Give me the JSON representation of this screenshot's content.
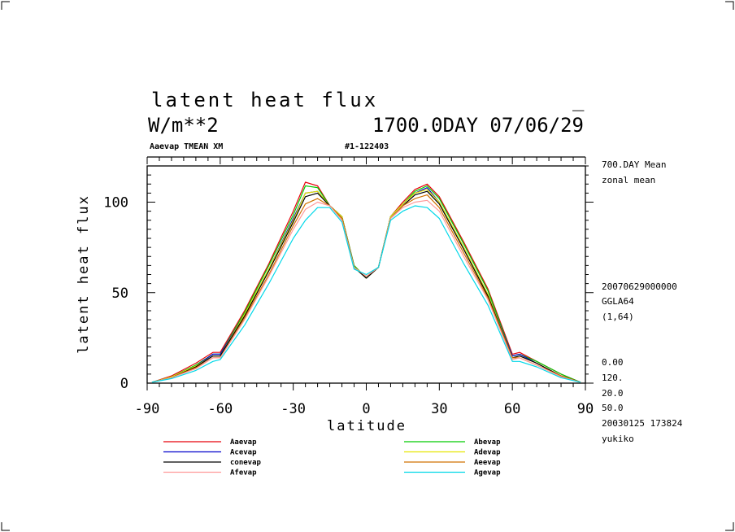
{
  "header": {
    "title": "latent heat flux",
    "title_mark": "_",
    "units": "W/m**2",
    "time_info": "1700.0DAY 07/06/29",
    "subtitle_left": "Aaevap TMEAN XM",
    "subtitle_center": "#1-122403"
  },
  "side_info": {
    "mean_label": "700.DAY Mean",
    "zonal_label": "zonal mean",
    "date_code": "20070629000000",
    "grid": "GGLA64",
    "index": "(1,64)",
    "v1": "0.00",
    "v2": "120.",
    "v3": "20.0",
    "v4": "50.0",
    "timestamp": "20030125 173824",
    "user": "yukiko"
  },
  "chart_data": {
    "type": "line",
    "xlabel": "latitude",
    "ylabel": "latent heat flux",
    "xlim": [
      -90,
      90
    ],
    "ylim": [
      0,
      120
    ],
    "x_ticks": [
      "-90",
      "-60",
      "-30",
      "0",
      "30",
      "60",
      "90"
    ],
    "y_ticks": [
      "0",
      "50",
      "100"
    ],
    "x": [
      -88,
      -80,
      -70,
      -63,
      -60,
      -50,
      -40,
      -30,
      -25,
      -20,
      -15,
      -10,
      -5,
      0,
      5,
      10,
      15,
      20,
      25,
      30,
      40,
      50,
      60,
      63,
      70,
      80,
      88
    ],
    "series": [
      {
        "name": "Aaevap",
        "color": "#e8000b",
        "values": [
          0.5,
          4,
          11,
          17,
          17,
          40,
          66,
          95,
          111,
          109,
          98,
          92,
          65,
          58,
          64,
          92,
          100,
          107,
          110,
          103,
          78,
          52,
          16,
          17,
          12,
          5,
          0.5
        ]
      },
      {
        "name": "Abevap",
        "color": "#00cc00",
        "values": [
          0.5,
          3.5,
          10,
          16,
          16,
          39,
          65,
          93,
          109,
          108,
          98,
          92,
          65,
          58,
          64,
          92,
          99,
          106,
          109,
          102,
          77,
          51,
          15,
          16,
          12,
          5,
          0.5
        ]
      },
      {
        "name": "Acevap",
        "color": "#0000cc",
        "values": [
          0.5,
          3.5,
          9.5,
          16,
          16,
          38,
          63,
          91,
          105,
          106,
          98,
          92,
          64,
          58,
          64,
          92,
          99,
          105,
          108,
          100,
          75,
          49,
          15,
          16,
          11,
          4,
          0.5
        ]
      },
      {
        "name": "Adevap",
        "color": "#e6e600",
        "values": [
          0.5,
          3.5,
          9.5,
          15,
          15,
          38,
          63,
          90,
          105,
          106,
          98,
          92,
          64,
          58,
          64,
          92,
          99,
          105,
          107,
          100,
          75,
          49,
          14,
          15,
          11,
          4,
          0.5
        ]
      },
      {
        "name": "conevap",
        "color": "#000000",
        "values": [
          0.5,
          3,
          9,
          15,
          15,
          37,
          62,
          89,
          103,
          105,
          98,
          91,
          64,
          58,
          64,
          91,
          98,
          104,
          106,
          99,
          74,
          48,
          14,
          15,
          11,
          4,
          0.5
        ]
      },
      {
        "name": "Aeevap",
        "color": "#d07000",
        "values": [
          0.5,
          3,
          8.5,
          14,
          14,
          36,
          60,
          87,
          99,
          102,
          98,
          91,
          64,
          59,
          64,
          91,
          98,
          102,
          104,
          97,
          72,
          47,
          14,
          14,
          10,
          4,
          0.5
        ]
      },
      {
        "name": "Afevap",
        "color": "#ff9999",
        "values": [
          0.5,
          3,
          8,
          14,
          14,
          35,
          59,
          85,
          96,
          100,
          98,
          90,
          64,
          59,
          64,
          91,
          97,
          100,
          101,
          95,
          70,
          46,
          13,
          14,
          10,
          3.5,
          0.5
        ]
      },
      {
        "name": "Agevap",
        "color": "#00d8e8",
        "values": [
          0.5,
          2.5,
          7,
          12,
          13,
          32,
          55,
          80,
          90,
          97,
          97,
          89,
          63,
          60,
          64,
          90,
          95,
          98,
          97,
          91,
          66,
          43,
          12,
          12,
          9,
          3,
          0.5
        ]
      }
    ],
    "legend": {
      "placement": "bottom",
      "left": [
        "Aaevap",
        "Acevap",
        "conevap",
        "Afevap"
      ],
      "right": [
        "Abevap",
        "Adevap",
        "Aeevap",
        "Agevap"
      ]
    }
  }
}
